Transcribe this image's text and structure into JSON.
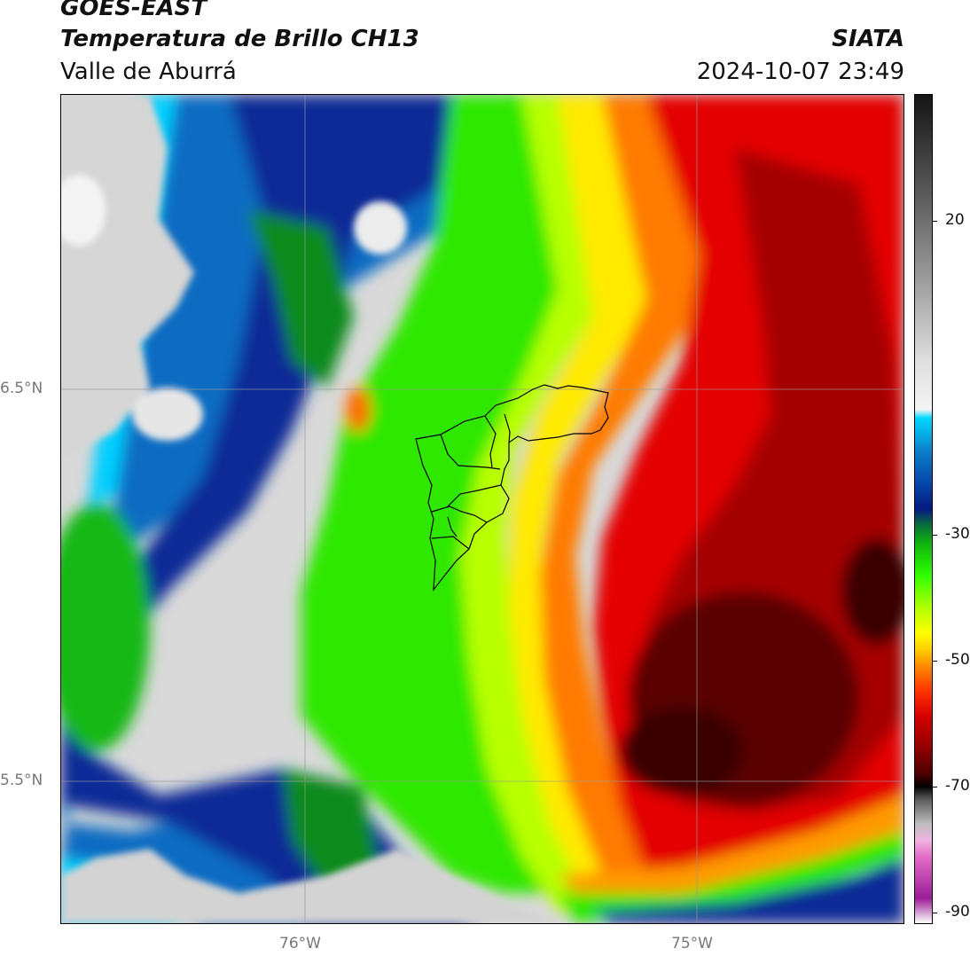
{
  "header": {
    "satellite": "GOES-EAST",
    "product": "Temperatura de Brillo CH13",
    "region": "Valle de Aburrá",
    "agency": "SIATA",
    "datetime": "2024-10-07 23:49"
  },
  "map": {
    "lat_labels": [
      "6.5°N",
      "5.5°N"
    ],
    "lon_labels": [
      "76°W",
      "75°W"
    ],
    "lat_gridlines": [
      6.5,
      5.5
    ],
    "lon_gridlines": [
      -76,
      -75
    ],
    "boundary": "Valle de Aburrá municipalities outline",
    "variable": "brightness temperature",
    "field_summary": "cold cloud tops (red to dark red) over the east and southeast; green and blue over the west; gray and white clear areas at northwest and south edges"
  },
  "colorbar": {
    "labels": [
      "20",
      "-30",
      "-50",
      "-70",
      "-90"
    ],
    "values": [
      20,
      -30,
      -50,
      -70,
      -90
    ],
    "stops": [
      {
        "color": "#ffffff",
        "pos": 0.0
      },
      {
        "color": "#9b1d96",
        "pos": 0.03
      },
      {
        "color": "#e46bc8",
        "pos": 0.08
      },
      {
        "color": "#f0b3e0",
        "pos": 0.1
      },
      {
        "color": "#bdbdbd",
        "pos": 0.12
      },
      {
        "color": "#5a5a5a",
        "pos": 0.15
      },
      {
        "color": "#000000",
        "pos": 0.165
      },
      {
        "color": "#4a0000",
        "pos": 0.18
      },
      {
        "color": "#8e0000",
        "pos": 0.21
      },
      {
        "color": "#d40000",
        "pos": 0.25
      },
      {
        "color": "#ff3300",
        "pos": 0.28
      },
      {
        "color": "#ff8800",
        "pos": 0.31
      },
      {
        "color": "#ffcc00",
        "pos": 0.33
      },
      {
        "color": "#ffff00",
        "pos": 0.35
      },
      {
        "color": "#b5ff00",
        "pos": 0.38
      },
      {
        "color": "#2fff00",
        "pos": 0.42
      },
      {
        "color": "#10b010",
        "pos": 0.46
      },
      {
        "color": "#0a6f3a",
        "pos": 0.48
      },
      {
        "color": "#061a80",
        "pos": 0.5
      },
      {
        "color": "#0645a8",
        "pos": 0.53
      },
      {
        "color": "#0b7fc9",
        "pos": 0.57
      },
      {
        "color": "#00d9ff",
        "pos": 0.61
      },
      {
        "color": "#f4f4f4",
        "pos": 0.62
      },
      {
        "color": "#dedede",
        "pos": 0.68
      },
      {
        "color": "#9a9a9a",
        "pos": 0.78
      },
      {
        "color": "#5a5a5a",
        "pos": 0.88
      },
      {
        "color": "#141414",
        "pos": 1.0
      }
    ]
  },
  "colors": {
    "clear": "#d9d9d9",
    "cold_core": "#3a0000",
    "red": "#e00000",
    "orange": "#ff7a00",
    "yellow": "#ffee00",
    "green": "#22e600",
    "dark_green": "#0e8a1e",
    "blue": "#082a9a",
    "mid_blue": "#0b6ec5",
    "cyan": "#00d2ff"
  }
}
